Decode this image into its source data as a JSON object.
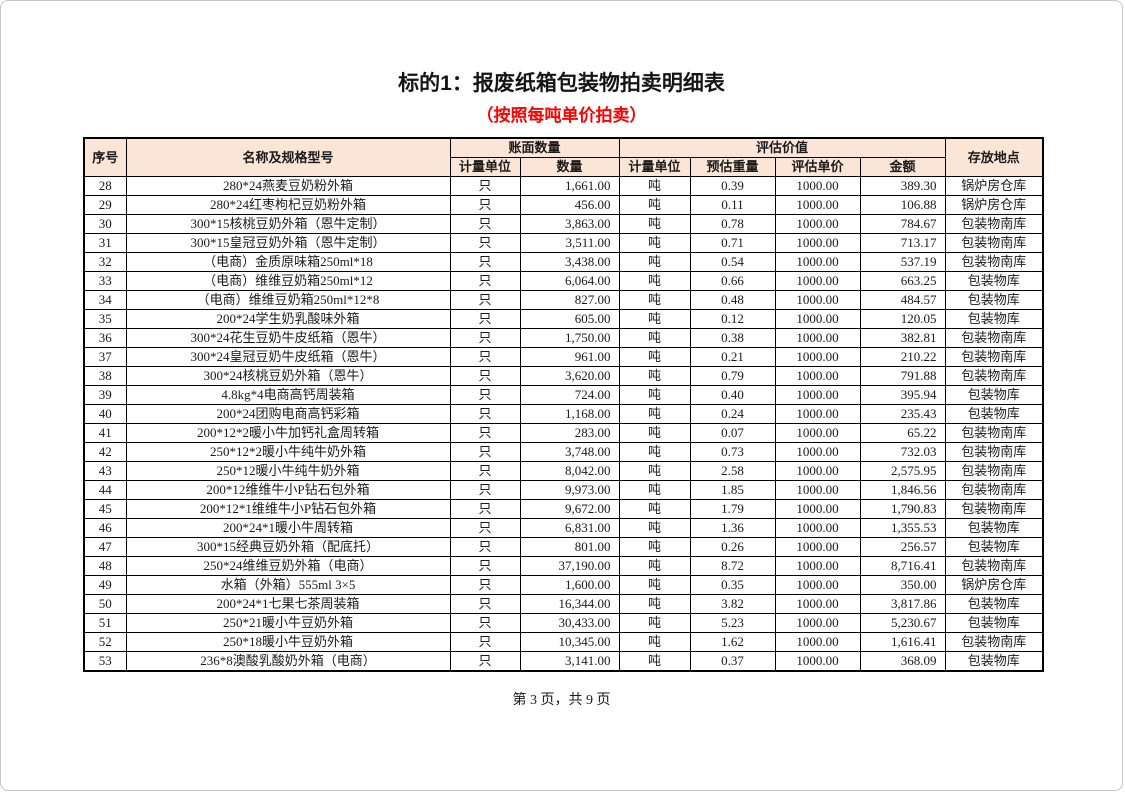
{
  "document": {
    "title": "标的1：报废纸箱包装物拍卖明细表",
    "subtitle": "（按照每吨单价拍卖）",
    "page_footer": "第 3 页，共 9 页"
  },
  "colors": {
    "header_bg": "#fbe5d6",
    "subtitle_red": "#ff0000",
    "table_border": "#000000"
  },
  "table": {
    "header": {
      "no": "序号",
      "name": "名称及规格型号",
      "book_group": "账面数量",
      "book_unit": "计量单位",
      "book_qty": "数量",
      "assess_group": "评估价值",
      "assess_unit": "计量单位",
      "assess_weight": "预估重量",
      "assess_price": "评估单价",
      "assess_amount": "金额",
      "location": "存放地点"
    },
    "rows": [
      [
        "28",
        "280*24燕麦豆奶粉外箱",
        "只",
        "1,661.00",
        "吨",
        "0.39",
        "1000.00",
        "389.30",
        "锅炉房仓库"
      ],
      [
        "29",
        "280*24红枣枸杞豆奶粉外箱",
        "只",
        "456.00",
        "吨",
        "0.11",
        "1000.00",
        "106.88",
        "锅炉房仓库"
      ],
      [
        "30",
        "300*15核桃豆奶外箱（恩牛定制）",
        "只",
        "3,863.00",
        "吨",
        "0.78",
        "1000.00",
        "784.67",
        "包装物南库"
      ],
      [
        "31",
        "300*15皇冠豆奶外箱（恩牛定制）",
        "只",
        "3,511.00",
        "吨",
        "0.71",
        "1000.00",
        "713.17",
        "包装物南库"
      ],
      [
        "32",
        "（电商）金质原味箱250ml*18",
        "只",
        "3,438.00",
        "吨",
        "0.54",
        "1000.00",
        "537.19",
        "包装物南库"
      ],
      [
        "33",
        "（电商）维维豆奶箱250ml*12",
        "只",
        "6,064.00",
        "吨",
        "0.66",
        "1000.00",
        "663.25",
        "包装物库"
      ],
      [
        "34",
        "（电商）维维豆奶箱250ml*12*8",
        "只",
        "827.00",
        "吨",
        "0.48",
        "1000.00",
        "484.57",
        "包装物库"
      ],
      [
        "35",
        "200*24学生奶乳酸味外箱",
        "只",
        "605.00",
        "吨",
        "0.12",
        "1000.00",
        "120.05",
        "包装物库"
      ],
      [
        "36",
        "300*24花生豆奶牛皮纸箱（恩牛）",
        "只",
        "1,750.00",
        "吨",
        "0.38",
        "1000.00",
        "382.81",
        "包装物南库"
      ],
      [
        "37",
        "300*24皇冠豆奶牛皮纸箱（恩牛）",
        "只",
        "961.00",
        "吨",
        "0.21",
        "1000.00",
        "210.22",
        "包装物南库"
      ],
      [
        "38",
        "300*24核桃豆奶外箱（恩牛）",
        "只",
        "3,620.00",
        "吨",
        "0.79",
        "1000.00",
        "791.88",
        "包装物南库"
      ],
      [
        "39",
        "4.8kg*4电商高钙周装箱",
        "只",
        "724.00",
        "吨",
        "0.40",
        "1000.00",
        "395.94",
        "包装物库"
      ],
      [
        "40",
        "200*24团购电商高钙彩箱",
        "只",
        "1,168.00",
        "吨",
        "0.24",
        "1000.00",
        "235.43",
        "包装物库"
      ],
      [
        "41",
        "200*12*2暖小牛加钙礼盒周转箱",
        "只",
        "283.00",
        "吨",
        "0.07",
        "1000.00",
        "65.22",
        "包装物南库"
      ],
      [
        "42",
        "250*12*2暖小牛纯牛奶外箱",
        "只",
        "3,748.00",
        "吨",
        "0.73",
        "1000.00",
        "732.03",
        "包装物南库"
      ],
      [
        "43",
        "250*12暖小牛纯牛奶外箱",
        "只",
        "8,042.00",
        "吨",
        "2.58",
        "1000.00",
        "2,575.95",
        "包装物南库"
      ],
      [
        "44",
        "200*12维维牛小P钻石包外箱",
        "只",
        "9,973.00",
        "吨",
        "1.85",
        "1000.00",
        "1,846.56",
        "包装物南库"
      ],
      [
        "45",
        "200*12*1维维牛小P钻石包外箱",
        "只",
        "9,672.00",
        "吨",
        "1.79",
        "1000.00",
        "1,790.83",
        "包装物南库"
      ],
      [
        "46",
        "200*24*1暖小牛周转箱",
        "只",
        "6,831.00",
        "吨",
        "1.36",
        "1000.00",
        "1,355.53",
        "包装物库"
      ],
      [
        "47",
        "300*15经典豆奶外箱（配底托）",
        "只",
        "801.00",
        "吨",
        "0.26",
        "1000.00",
        "256.57",
        "包装物库"
      ],
      [
        "48",
        "250*24维维豆奶外箱（电商）",
        "只",
        "37,190.00",
        "吨",
        "8.72",
        "1000.00",
        "8,716.41",
        "包装物南库"
      ],
      [
        "49",
        "水箱（外箱）555ml 3×5",
        "只",
        "1,600.00",
        "吨",
        "0.35",
        "1000.00",
        "350.00",
        "锅炉房仓库"
      ],
      [
        "50",
        "200*24*1七果七茶周装箱",
        "只",
        "16,344.00",
        "吨",
        "3.82",
        "1000.00",
        "3,817.86",
        "包装物库"
      ],
      [
        "51",
        "250*21暖小牛豆奶外箱",
        "只",
        "30,433.00",
        "吨",
        "5.23",
        "1000.00",
        "5,230.67",
        "包装物库"
      ],
      [
        "52",
        "250*18暖小牛豆奶外箱",
        "只",
        "10,345.00",
        "吨",
        "1.62",
        "1000.00",
        "1,616.41",
        "包装物南库"
      ],
      [
        "53",
        "236*8澳酸乳酸奶外箱（电商）",
        "只",
        "3,141.00",
        "吨",
        "0.37",
        "1000.00",
        "368.09",
        "包装物库"
      ]
    ]
  }
}
